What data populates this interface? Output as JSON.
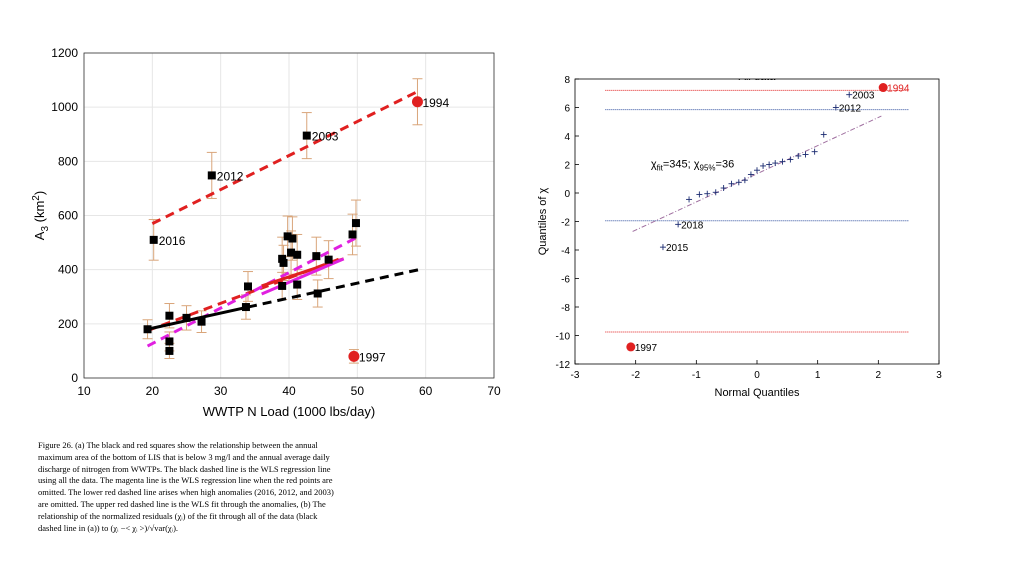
{
  "chart_data": [
    {
      "type": "scatter",
      "xlabel": "WWTP N Load (1000 lbs/day)",
      "ylabel_main": "A",
      "ylabel_sub": "3",
      "ylabel_unit_open": " (km",
      "ylabel_unit_sup": "2",
      "ylabel_unit_close": ")",
      "xlim": [
        10,
        70
      ],
      "ylim": [
        0,
        1200
      ],
      "xticks": [
        "10",
        "20",
        "30",
        "40",
        "50",
        "60",
        "70"
      ],
      "yticks": [
        "0",
        "200",
        "400",
        "600",
        "800",
        "1000",
        "1200"
      ],
      "grid": true,
      "points": [
        {
          "x": 19.3,
          "y": 180,
          "err": 35
        },
        {
          "x": 22.5,
          "y": 230,
          "err": 45
        },
        {
          "x": 22.5,
          "y": 135,
          "err": 35
        },
        {
          "x": 22.5,
          "y": 100,
          "err": 28
        },
        {
          "x": 25.0,
          "y": 222,
          "err": 45
        },
        {
          "x": 27.2,
          "y": 208,
          "err": 40
        },
        {
          "x": 33.7,
          "y": 262,
          "err": 45
        },
        {
          "x": 34.0,
          "y": 338,
          "err": 55
        },
        {
          "x": 39.0,
          "y": 440,
          "err": 80
        },
        {
          "x": 39.2,
          "y": 425,
          "err": 65
        },
        {
          "x": 39.0,
          "y": 340,
          "err": 50
        },
        {
          "x": 39.8,
          "y": 523,
          "err": 75
        },
        {
          "x": 40.3,
          "y": 463,
          "err": 80
        },
        {
          "x": 40.5,
          "y": 515,
          "err": 80
        },
        {
          "x": 41.2,
          "y": 455,
          "err": 75
        },
        {
          "x": 41.2,
          "y": 345,
          "err": 55
        },
        {
          "x": 44.0,
          "y": 450,
          "err": 70
        },
        {
          "x": 44.2,
          "y": 312,
          "err": 50
        },
        {
          "x": 45.8,
          "y": 437,
          "err": 70
        },
        {
          "x": 49.3,
          "y": 530,
          "err": 75
        },
        {
          "x": 49.8,
          "y": 572,
          "err": 85
        }
      ],
      "labeled_points": [
        {
          "x": 20.2,
          "y": 510,
          "err": 75,
          "label": "2016",
          "marker": "square"
        },
        {
          "x": 28.7,
          "y": 748,
          "err": 85,
          "label": "2012",
          "marker": "square"
        },
        {
          "x": 42.6,
          "y": 895,
          "err": 85,
          "label": "2003",
          "marker": "square"
        },
        {
          "x": 58.8,
          "y": 1020,
          "err": 85,
          "label": "1994",
          "marker": "circle"
        },
        {
          "x": 49.5,
          "y": 80,
          "err": 25,
          "label": "1997",
          "marker": "circle"
        }
      ],
      "lines": [
        {
          "x": [
            20,
            59
          ],
          "y": [
            570,
            1060
          ],
          "color": "#e02020",
          "style": "dashed"
        },
        {
          "x": [
            19.3,
            48
          ],
          "y": [
            175,
            445
          ],
          "color": "#e02020",
          "style": "dashed"
        },
        {
          "x": [
            19.3,
            50
          ],
          "y": [
            118,
            520
          ],
          "color": "#e020e0",
          "style": "dashed"
        },
        {
          "x": [
            19.3,
            34
          ],
          "y": [
            180,
            262
          ],
          "color": "#000000",
          "style": "solid"
        },
        {
          "x": [
            34,
            59
          ],
          "y": [
            262,
            400
          ],
          "color": "#000000",
          "style": "dashed"
        },
        {
          "x": [
            36,
            48
          ],
          "y": [
            340,
            440
          ],
          "color": "#e02020",
          "style": "solid"
        },
        {
          "x": [
            36,
            48
          ],
          "y": [
            310,
            440
          ],
          "color": "#e020e0",
          "style": "solid"
        }
      ],
      "colors": {
        "errorbar": "#d9a57a",
        "highlight": "#e02020",
        "grid": "#e6e6e6"
      }
    },
    {
      "type": "scatter",
      "title_partial": "All data",
      "xlabel": "Normal Quantiles",
      "ylabel": "Quantiles of χ",
      "xlim": [
        -3,
        3
      ],
      "ylim": [
        -12,
        8
      ],
      "xticks": [
        "-3",
        "-2",
        "-1",
        "0",
        "1",
        "2",
        "3"
      ],
      "yticks": [
        "-12",
        "-10",
        "-8",
        "-6",
        "-4",
        "-2",
        "0",
        "2",
        "4",
        "6",
        "8"
      ],
      "grid": false,
      "annotation": {
        "chi1": "χ",
        "sub1": "fit",
        "mid": "=345; χ",
        "sub2": "95%",
        "end": "=36"
      },
      "points": [
        {
          "x": -1.12,
          "y": -0.45
        },
        {
          "x": -0.95,
          "y": -0.1
        },
        {
          "x": -0.82,
          "y": -0.05
        },
        {
          "x": -0.68,
          "y": 0.05
        },
        {
          "x": -0.55,
          "y": 0.35
        },
        {
          "x": -0.42,
          "y": 0.65
        },
        {
          "x": -0.3,
          "y": 0.75
        },
        {
          "x": -0.2,
          "y": 0.9
        },
        {
          "x": -0.1,
          "y": 1.3
        },
        {
          "x": 0.0,
          "y": 1.6
        },
        {
          "x": 0.1,
          "y": 1.9
        },
        {
          "x": 0.2,
          "y": 2.0
        },
        {
          "x": 0.3,
          "y": 2.1
        },
        {
          "x": 0.42,
          "y": 2.2
        },
        {
          "x": 0.55,
          "y": 2.35
        },
        {
          "x": 0.68,
          "y": 2.6
        },
        {
          "x": 0.8,
          "y": 2.7
        },
        {
          "x": 0.95,
          "y": 2.9
        },
        {
          "x": 1.1,
          "y": 4.1
        }
      ],
      "labeled_points": [
        {
          "x": 1.52,
          "y": 6.9,
          "label": "2003",
          "marker": "plus"
        },
        {
          "x": 1.3,
          "y": 6.0,
          "label": "2012",
          "marker": "plus"
        },
        {
          "x": -1.3,
          "y": -2.2,
          "label": "2018",
          "marker": "plus"
        },
        {
          "x": -1.55,
          "y": -3.8,
          "label": "2015",
          "marker": "plus"
        },
        {
          "x": 2.08,
          "y": 7.4,
          "label": "1994",
          "marker": "circle"
        },
        {
          "x": -2.08,
          "y": -10.8,
          "label": "1997",
          "marker": "circle"
        }
      ],
      "fit_line": {
        "x": [
          -2.05,
          2.05
        ],
        "y": [
          -2.7,
          5.4
        ],
        "color": "#a070a0"
      },
      "hlines": [
        {
          "y": 7.2,
          "color": "#e02020"
        },
        {
          "y": 5.85,
          "color": "#3050a0"
        },
        {
          "y": -1.95,
          "color": "#3050a0"
        },
        {
          "y": -9.75,
          "color": "#e02020"
        }
      ],
      "hline_span": [
        -2.5,
        2.5
      ],
      "colors": {
        "marker": "#1a2a70",
        "highlight": "#e02020"
      }
    }
  ],
  "caption_lines": [
    "Figure 26. (a) The black and red squares show the relationship between the annual",
    "maximum area of the bottom of LIS that is below 3 mg/l and the annual average daily",
    "discharge of nitrogen from WWTPs.  The black dashed line is the WLS regression line",
    "using all the data. The magenta line is the WLS regression line when the red points are",
    "omitted. The lower red dashed line arises when high anomalies (2016, 2012, and 2003)",
    "are  omitted. The upper red dashed line is the WLS fit through the anomalies, (b) The",
    "relationship of the normalized residuals (χᵢ) of the fit through all of the data (black",
    "dashed line in (a)) to (χᵢ −< χᵢ >)/√var(χᵢ)."
  ]
}
